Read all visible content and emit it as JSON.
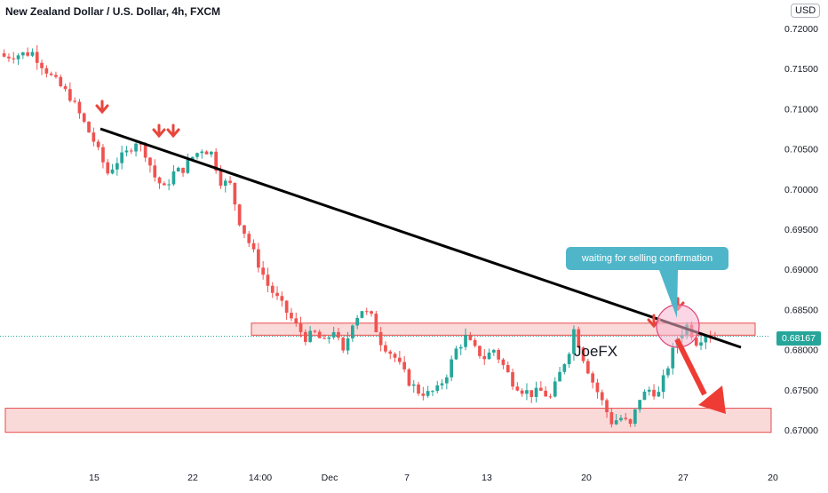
{
  "header": {
    "title": "New Zealand Dollar / U.S. Dollar, 4h, FXCM",
    "currency": "USD"
  },
  "chart_data": {
    "type": "candlestick",
    "symbol": "NZDUSD",
    "timeframe": "4h",
    "ylim": [
      0.6685,
      0.7215
    ],
    "y_ticks": [
      "0.72000",
      "0.71500",
      "0.71000",
      "0.70500",
      "0.70000",
      "0.69500",
      "0.69000",
      "0.68500",
      "0.68000",
      "0.67500",
      "0.67000"
    ],
    "x_ticks": [
      "15",
      "22",
      "14:00",
      "Dec",
      "7",
      "13",
      "20",
      "27",
      "20"
    ],
    "current_price": "0.68167",
    "close_path": [
      [
        0,
        0.7165
      ],
      [
        6,
        0.717
      ],
      [
        10,
        0.714
      ],
      [
        14,
        0.7115
      ],
      [
        19,
        0.706
      ],
      [
        22,
        0.702
      ],
      [
        24,
        0.7035
      ],
      [
        26,
        0.7045
      ],
      [
        28,
        0.706
      ],
      [
        30,
        0.7045
      ],
      [
        32,
        0.7015
      ],
      [
        34,
        0.7
      ],
      [
        36,
        0.702
      ],
      [
        38,
        0.7025
      ],
      [
        40,
        0.704
      ],
      [
        42,
        0.705
      ],
      [
        44,
        0.7045
      ],
      [
        46,
        0.701
      ],
      [
        48,
        0.7005
      ],
      [
        50,
        0.696
      ],
      [
        53,
        0.692
      ],
      [
        56,
        0.688
      ],
      [
        59,
        0.6855
      ],
      [
        62,
        0.683
      ],
      [
        64,
        0.6815
      ],
      [
        66,
        0.682
      ],
      [
        68,
        0.6808
      ],
      [
        70,
        0.6825
      ],
      [
        72,
        0.6795
      ],
      [
        74,
        0.6835
      ],
      [
        76,
        0.685
      ],
      [
        78,
        0.684
      ],
      [
        80,
        0.681
      ],
      [
        83,
        0.679
      ],
      [
        86,
        0.676
      ],
      [
        88,
        0.6748
      ],
      [
        90,
        0.6745
      ],
      [
        92,
        0.675
      ],
      [
        94,
        0.677
      ],
      [
        96,
        0.68
      ],
      [
        98,
        0.6815
      ],
      [
        100,
        0.68
      ],
      [
        102,
        0.679
      ],
      [
        104,
        0.68
      ],
      [
        106,
        0.678
      ],
      [
        108,
        0.676
      ],
      [
        110,
        0.675
      ],
      [
        112,
        0.6745
      ],
      [
        114,
        0.6748
      ],
      [
        116,
        0.674
      ],
      [
        118,
        0.677
      ],
      [
        120,
        0.68
      ],
      [
        121,
        0.6825
      ],
      [
        123,
        0.679
      ],
      [
        125,
        0.676
      ],
      [
        127,
        0.6735
      ],
      [
        129,
        0.671
      ],
      [
        131,
        0.6715
      ],
      [
        133,
        0.6705
      ],
      [
        135,
        0.674
      ],
      [
        137,
        0.675
      ],
      [
        139,
        0.6745
      ],
      [
        141,
        0.678
      ],
      [
        143,
        0.6815
      ],
      [
        145,
        0.683
      ],
      [
        147,
        0.681
      ],
      [
        149,
        0.682
      ],
      [
        151,
        0.6815
      ]
    ],
    "annotations": {
      "trendline": "descending trendline from 0.7075 (bar 22) to 0.6805 (bar 164)",
      "resistance_zone": [
        0.6818,
        0.6833
      ],
      "support_zone": [
        0.6697,
        0.6727
      ],
      "callout_text": "waiting for selling confirmation",
      "watermark": "JoeFX"
    }
  }
}
